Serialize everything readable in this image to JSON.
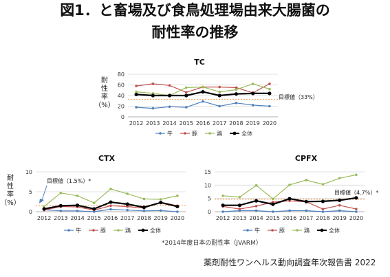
{
  "title_line1": "図1．と畜場及び食鳥処理場由来大腸菌の",
  "title_line2": "耐性率の推移",
  "footnote": "*2014年度日本の耐性率（JVARM）",
  "source": "薬剤耐性ワンヘルス動向調査年次報告書 2022",
  "colors": {
    "cattle": "#4f81bd",
    "pig": "#c0504d",
    "chicken": "#9bbb59",
    "total": "#000000",
    "target": "#f79646"
  },
  "chart_data": [
    {
      "id": "tc",
      "type": "line",
      "title": "TC",
      "ylabel": "耐性率（%）",
      "ylim": [
        0,
        80
      ],
      "yticks": [
        "0",
        "20",
        "40",
        "60",
        "80"
      ],
      "categories": [
        "2012",
        "2013",
        "2014",
        "2015",
        "2016",
        "2017",
        "2018",
        "2019",
        "2020"
      ],
      "target": {
        "value": 33,
        "label": "目標値（33%）"
      },
      "series": [
        {
          "name": "牛",
          "key": "cattle",
          "values": [
            18,
            16,
            19,
            18,
            29,
            20,
            26,
            22,
            20
          ]
        },
        {
          "name": "豚",
          "key": "pig",
          "values": [
            58,
            62,
            59,
            46,
            56,
            56,
            55,
            45,
            62
          ]
        },
        {
          "name": "鶏",
          "key": "chicken",
          "values": [
            47,
            44,
            40,
            55,
            56,
            47,
            51,
            62,
            52
          ]
        },
        {
          "name": "全体",
          "key": "total",
          "values": [
            42,
            40,
            40,
            40,
            47,
            40,
            43,
            44,
            44
          ]
        }
      ]
    },
    {
      "id": "ctx",
      "type": "line",
      "title": "CTX",
      "ylabel": "耐性率（%）",
      "ylim": [
        0,
        10
      ],
      "yticks": [
        "0",
        "5",
        "10"
      ],
      "categories": [
        "2012",
        "2013",
        "2014",
        "2015",
        "2016",
        "2017",
        "2018",
        "2019",
        "2020"
      ],
      "target": {
        "value": 1.5,
        "label": "目標値（1.5%）*"
      },
      "series": [
        {
          "name": "牛",
          "key": "cattle",
          "values": [
            0.5,
            0.2,
            0.2,
            0.0,
            0.6,
            0.4,
            0.2,
            0.3,
            0.0
          ]
        },
        {
          "name": "豚",
          "key": "pig",
          "values": [
            0.4,
            1.3,
            1.2,
            0.4,
            1.5,
            1.3,
            0.9,
            2.4,
            1.5
          ]
        },
        {
          "name": "鶏",
          "key": "chicken",
          "values": [
            1.3,
            4.7,
            4.0,
            2.2,
            5.7,
            4.5,
            3.2,
            3.1,
            4.0
          ]
        },
        {
          "name": "全体",
          "key": "total",
          "values": [
            0.7,
            1.5,
            1.6,
            0.7,
            2.4,
            1.9,
            1.1,
            2.3,
            1.3
          ]
        }
      ]
    },
    {
      "id": "cpfx",
      "type": "line",
      "title": "CPFX",
      "ylabel": "",
      "ylim": [
        0,
        15
      ],
      "yticks": [
        "0",
        "5",
        "10",
        "15"
      ],
      "categories": [
        "2012",
        "2013",
        "2014",
        "2015",
        "2016",
        "2017",
        "2018",
        "2019",
        "2020"
      ],
      "target": {
        "value": 4.7,
        "label": "目標値（4.7%）*"
      },
      "series": [
        {
          "name": "牛",
          "key": "cattle",
          "values": [
            0.0,
            0.4,
            0.4,
            0.0,
            0.4,
            0.4,
            0.0,
            0.4,
            0.0
          ]
        },
        {
          "name": "豚",
          "key": "pig",
          "values": [
            2.0,
            1.0,
            2.1,
            3.6,
            4.1,
            3.7,
            1.0,
            2.4,
            1.0
          ]
        },
        {
          "name": "鶏",
          "key": "chicken",
          "values": [
            6.0,
            5.5,
            9.9,
            4.8,
            10.1,
            11.9,
            10.3,
            12.6,
            13.9
          ]
        },
        {
          "name": "全体",
          "key": "total",
          "values": [
            2.4,
            2.4,
            4.1,
            2.8,
            4.9,
            3.8,
            3.9,
            4.3,
            5.2
          ]
        }
      ]
    }
  ]
}
